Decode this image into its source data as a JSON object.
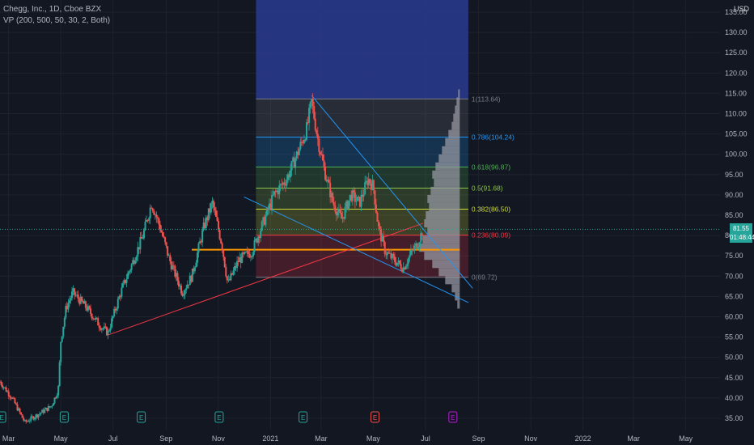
{
  "header": {
    "symbol_line": "Chegg, Inc., 1D, Cboe BZX",
    "indicator_line": "VP (200, 500, 50, 30, 2, Both)",
    "currency": "USD"
  },
  "price_badge": {
    "price": "81.55",
    "countdown": "01:48:44",
    "color": "#26a69a"
  },
  "colors": {
    "background": "#131722",
    "up": "#26a69a",
    "down": "#ef5350",
    "poc": "#ff9800",
    "fib_level_1": "#787b86",
    "fib_786": "#2196f3",
    "fib_618": "#4caf50",
    "fib_5": "#8bc34a",
    "fib_382": "#cddc39",
    "fib_236": "#f23645",
    "fib_0": "#787b86"
  },
  "chart_data": {
    "type": "candlestick",
    "ylim": [
      32,
      138
    ],
    "y_ticks": [
      35,
      40,
      45,
      50,
      55,
      60,
      65,
      70,
      75,
      80,
      85,
      90,
      95,
      100,
      105,
      110,
      115,
      120,
      125,
      130,
      135
    ],
    "y_tick_labels": [
      "35.00",
      "40.00",
      "45.00",
      "50.00",
      "55.00",
      "60.00",
      "65.00",
      "70.00",
      "75.00",
      "80.00",
      "85.00",
      "90.00",
      "95.00",
      "100.00",
      "105.00",
      "110.00",
      "115.00",
      "120.00",
      "125.00",
      "130.00",
      "135.00"
    ],
    "x_range": [
      "2020-02-20",
      "2022-06-10"
    ],
    "x_ticks": [
      {
        "date": "2020-03-01",
        "label": "Mar"
      },
      {
        "date": "2020-05-01",
        "label": "May"
      },
      {
        "date": "2020-07-01",
        "label": "Jul"
      },
      {
        "date": "2020-09-01",
        "label": "Sep"
      },
      {
        "date": "2020-11-01",
        "label": "Nov"
      },
      {
        "date": "2021-01-01",
        "label": "2021"
      },
      {
        "date": "2021-03-01",
        "label": "Mar"
      },
      {
        "date": "2021-05-01",
        "label": "May"
      },
      {
        "date": "2021-07-01",
        "label": "Jul"
      },
      {
        "date": "2021-09-01",
        "label": "Sep"
      },
      {
        "date": "2021-11-01",
        "label": "Nov"
      },
      {
        "date": "2022-01-01",
        "label": "2022"
      },
      {
        "date": "2022-03-01",
        "label": "Mar"
      },
      {
        "date": "2022-05-01",
        "label": "May"
      }
    ],
    "price_path": [
      {
        "date": "2020-02-20",
        "close": 44
      },
      {
        "date": "2020-03-05",
        "close": 40
      },
      {
        "date": "2020-03-20",
        "close": 34
      },
      {
        "date": "2020-04-05",
        "close": 36
      },
      {
        "date": "2020-04-20",
        "close": 38
      },
      {
        "date": "2020-04-28",
        "close": 42
      },
      {
        "date": "2020-05-01",
        "close": 54
      },
      {
        "date": "2020-05-07",
        "close": 62
      },
      {
        "date": "2020-05-15",
        "close": 66
      },
      {
        "date": "2020-06-01",
        "close": 62
      },
      {
        "date": "2020-06-15",
        "close": 58
      },
      {
        "date": "2020-06-25",
        "close": 56
      },
      {
        "date": "2020-07-10",
        "close": 66
      },
      {
        "date": "2020-07-25",
        "close": 74
      },
      {
        "date": "2020-08-05",
        "close": 80
      },
      {
        "date": "2020-08-15",
        "close": 88
      },
      {
        "date": "2020-08-25",
        "close": 82
      },
      {
        "date": "2020-09-05",
        "close": 74
      },
      {
        "date": "2020-09-20",
        "close": 66
      },
      {
        "date": "2020-10-01",
        "close": 70
      },
      {
        "date": "2020-10-15",
        "close": 82
      },
      {
        "date": "2020-10-25",
        "close": 88
      },
      {
        "date": "2020-11-05",
        "close": 78
      },
      {
        "date": "2020-11-12",
        "close": 68
      },
      {
        "date": "2020-11-25",
        "close": 74
      },
      {
        "date": "2020-12-10",
        "close": 76
      },
      {
        "date": "2020-12-25",
        "close": 84
      },
      {
        "date": "2021-01-05",
        "close": 90
      },
      {
        "date": "2021-01-20",
        "close": 94
      },
      {
        "date": "2021-02-01",
        "close": 100
      },
      {
        "date": "2021-02-12",
        "close": 106
      },
      {
        "date": "2021-02-18",
        "close": 113
      },
      {
        "date": "2021-02-25",
        "close": 104
      },
      {
        "date": "2021-03-05",
        "close": 96
      },
      {
        "date": "2021-03-15",
        "close": 88
      },
      {
        "date": "2021-03-25",
        "close": 84
      },
      {
        "date": "2021-04-05",
        "close": 90
      },
      {
        "date": "2021-04-15",
        "close": 88
      },
      {
        "date": "2021-04-25",
        "close": 94
      },
      {
        "date": "2021-05-01",
        "close": 92
      },
      {
        "date": "2021-05-07",
        "close": 82
      },
      {
        "date": "2021-05-15",
        "close": 76
      },
      {
        "date": "2021-05-25",
        "close": 74
      },
      {
        "date": "2021-06-05",
        "close": 72
      },
      {
        "date": "2021-06-15",
        "close": 76
      },
      {
        "date": "2021-06-22",
        "close": 78
      },
      {
        "date": "2021-06-28",
        "close": 81.55
      }
    ],
    "fibonacci": {
      "range": [
        "2020-12-15",
        "2021-08-20"
      ],
      "levels": [
        {
          "ratio": "1",
          "label": "1(113.64)",
          "price": 113.64,
          "color_key": "fib_level_1",
          "fill": "#787b86"
        },
        {
          "ratio": "0.786",
          "label": "0.786(104.24)",
          "price": 104.24,
          "color_key": "fib_786",
          "fill": "#787b86"
        },
        {
          "ratio": "0.618",
          "label": "0.618(96.87)",
          "price": 96.87,
          "color_key": "fib_618",
          "fill": "#2196f3"
        },
        {
          "ratio": "0.5",
          "label": "0.5(91.68)",
          "price": 91.68,
          "color_key": "fib_5",
          "fill": "#4caf50"
        },
        {
          "ratio": "0.382",
          "label": "0.382(86.50)",
          "price": 86.5,
          "color_key": "fib_382",
          "fill": "#8bc34a"
        },
        {
          "ratio": "0.236",
          "label": "0.236(80.09)",
          "price": 80.09,
          "color_key": "fib_236",
          "fill": "#cddc39"
        },
        {
          "ratio": "0",
          "label": "0(69.72)",
          "price": 69.72,
          "color_key": "fib_0",
          "fill": "#f23645"
        }
      ]
    },
    "volume_profile": {
      "anchor_date": "2021-08-10",
      "poc_price": 76.5,
      "poc_range": [
        "2020-10-01",
        "2021-06-28"
      ],
      "bins": [
        {
          "price": 115,
          "width": 2
        },
        {
          "price": 113,
          "width": 4
        },
        {
          "price": 111,
          "width": 6
        },
        {
          "price": 109,
          "width": 8
        },
        {
          "price": 107,
          "width": 10
        },
        {
          "price": 105,
          "width": 14
        },
        {
          "price": 103,
          "width": 18
        },
        {
          "price": 101,
          "width": 22
        },
        {
          "price": 99,
          "width": 26
        },
        {
          "price": 97,
          "width": 30
        },
        {
          "price": 95,
          "width": 34
        },
        {
          "price": 93,
          "width": 32
        },
        {
          "price": 91,
          "width": 36
        },
        {
          "price": 89,
          "width": 40
        },
        {
          "price": 87,
          "width": 38
        },
        {
          "price": 85,
          "width": 42
        },
        {
          "price": 83,
          "width": 44
        },
        {
          "price": 81,
          "width": 40
        },
        {
          "price": 79,
          "width": 46
        },
        {
          "price": 77,
          "width": 50
        },
        {
          "price": 75,
          "width": 44
        },
        {
          "price": 73,
          "width": 34
        },
        {
          "price": 71,
          "width": 26
        },
        {
          "price": 69,
          "width": 18
        },
        {
          "price": 67,
          "width": 10
        },
        {
          "price": 65,
          "width": 6
        },
        {
          "price": 63,
          "width": 3
        }
      ]
    },
    "trendlines": [
      {
        "from": {
          "date": "2020-06-25",
          "price": 55.5
        },
        "to": {
          "date": "2021-06-28",
          "price": 83
        },
        "color": "#f23645"
      },
      {
        "from": {
          "date": "2020-12-01",
          "price": 89.5
        },
        "to": {
          "date": "2021-08-20",
          "price": 63.5
        },
        "color": "#2196f3"
      },
      {
        "from": {
          "date": "2021-02-18",
          "price": 114.5
        },
        "to": {
          "date": "2021-08-25",
          "price": 67
        },
        "color": "#2196f3"
      }
    ],
    "top_box": {
      "range": [
        "2020-12-15",
        "2021-08-20"
      ],
      "price_from": 113.64,
      "color": "#2a3b8f"
    },
    "events": [
      {
        "date": "2020-02-22",
        "label": "E",
        "kind": "earnings"
      },
      {
        "date": "2020-05-05",
        "label": "E",
        "kind": "earnings"
      },
      {
        "date": "2020-08-03",
        "label": "E",
        "kind": "earnings"
      },
      {
        "date": "2020-11-02",
        "label": "E",
        "kind": "earnings"
      },
      {
        "date": "2021-02-08",
        "label": "E",
        "kind": "earnings"
      },
      {
        "date": "2021-05-03",
        "label": "E",
        "kind": "earnings-red"
      },
      {
        "date": "2021-08-02",
        "label": "E",
        "kind": "earnings-upcoming"
      }
    ]
  }
}
